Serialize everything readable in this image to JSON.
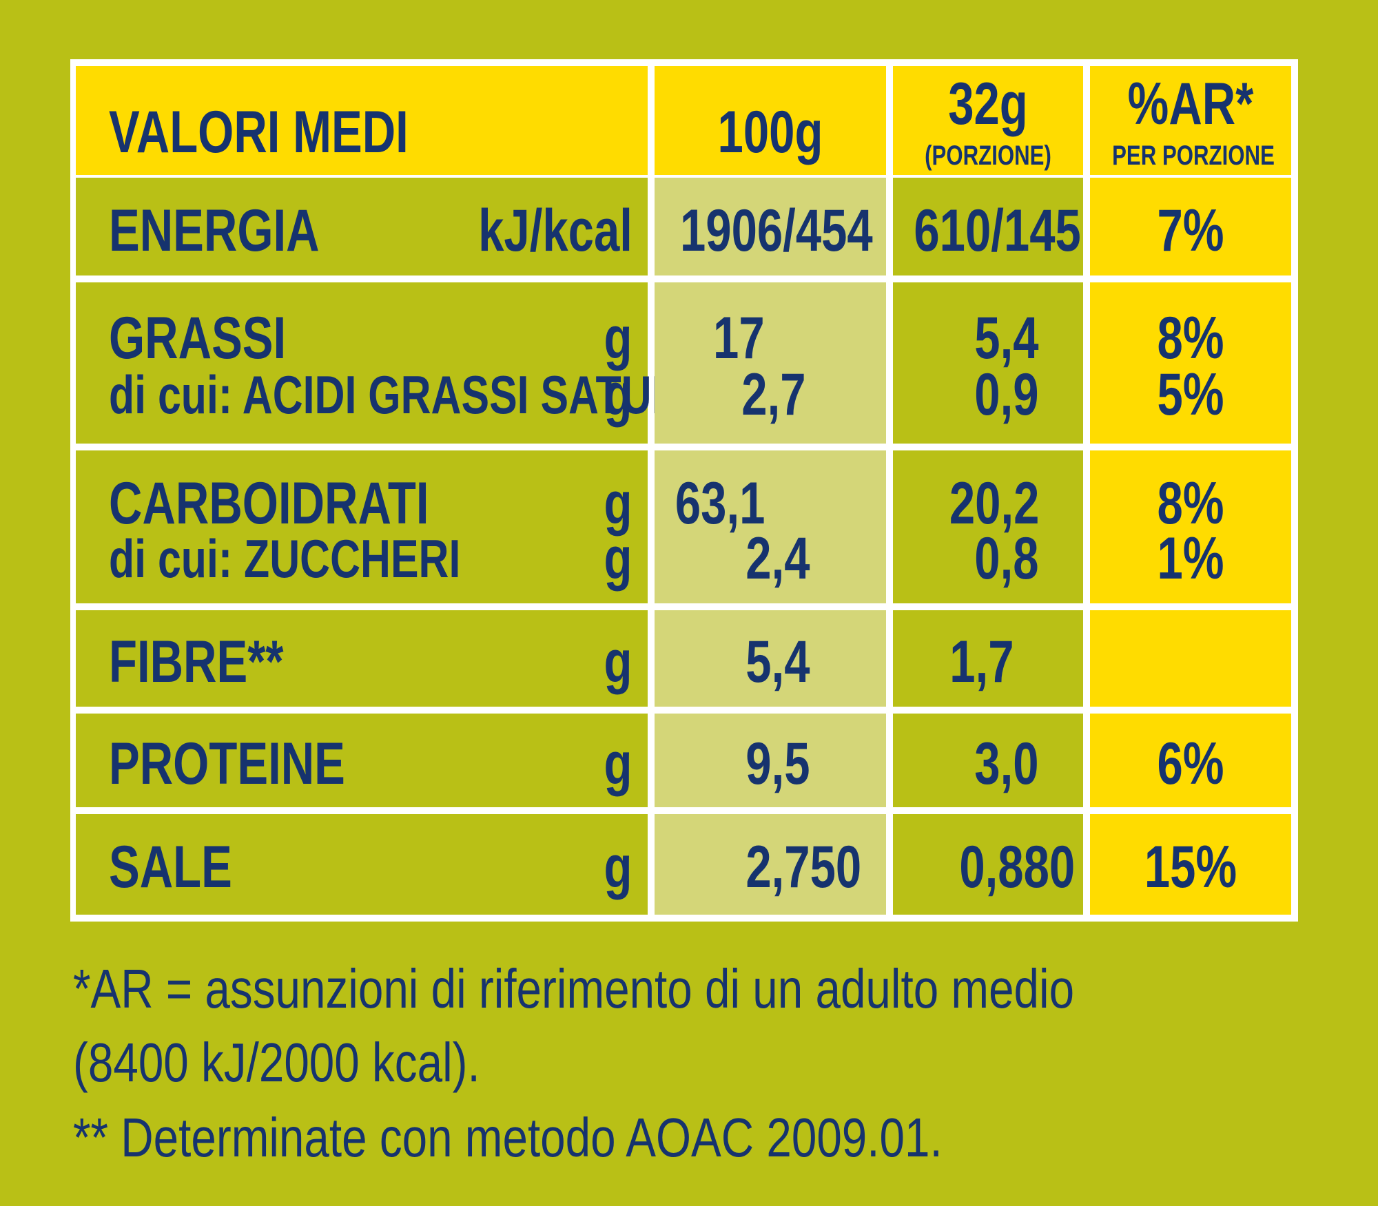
{
  "header": {
    "label": "VALORI MEDI",
    "col_100g": "100g",
    "col_portion": "32g",
    "col_portion_sub": "(PORZIONE)",
    "col_ar": "%AR*",
    "col_ar_sub": "PER PORZIONE"
  },
  "rows": {
    "energia": {
      "label": "ENERGIA",
      "unit": "kJ/kcal",
      "v100": "1906/454",
      "vportion": "610/145",
      "ar": "7%"
    },
    "grassi": {
      "label": "GRASSI",
      "unit": "g",
      "v100": "17",
      "vportion": "5,4",
      "ar": "8%"
    },
    "saturi": {
      "label": "di cui: ACIDI GRASSI SATURI",
      "unit": "g",
      "v100": "2,7",
      "vportion": "0,9",
      "ar": "5%"
    },
    "carboidrati": {
      "label": "CARBOIDRATI",
      "unit": "g",
      "v100": "63,1",
      "vportion": "20,2",
      "ar": "8%"
    },
    "zuccheri": {
      "label": "di cui: ZUCCHERI",
      "unit": "g",
      "v100": "2,4",
      "vportion": "0,8",
      "ar": "1%"
    },
    "fibre": {
      "label": "FIBRE**",
      "unit": "g",
      "v100": "5,4",
      "vportion": "1,7",
      "ar": ""
    },
    "proteine": {
      "label": "PROTEINE",
      "unit": "g",
      "v100": "9,5",
      "vportion": "3,0",
      "ar": "6%"
    },
    "sale": {
      "label": "SALE",
      "unit": "g",
      "v100": "2,750",
      "vportion": "0,880",
      "ar": "15%"
    }
  },
  "footnotes": {
    "line1": "*AR = assunzioni di riferimento di un adulto medio",
    "line2": "(8400 kJ/2000 kcal).",
    "line3": "** Determinate con metodo AOAC 2009.01."
  },
  "colors": {
    "background": "#b9c016",
    "header_yellow": "#ffdc00",
    "pale_column": "#d4d678",
    "text_blue": "#16336e",
    "grid_white": "#ffffff"
  }
}
